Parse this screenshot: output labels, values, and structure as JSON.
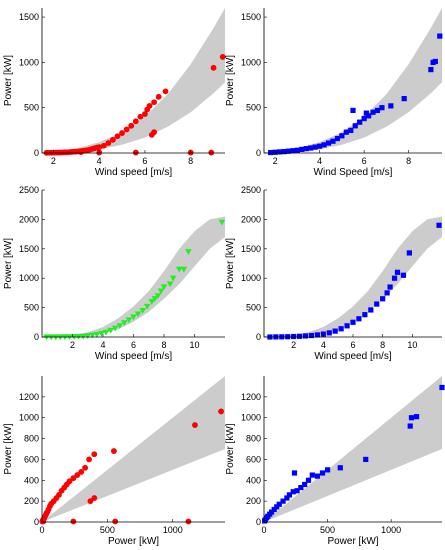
{
  "chart_data": [
    {
      "type": "scatter",
      "xlabel": "Wind speed [m/s]",
      "ylabel": "Power [kW]",
      "xlim": [
        1.5,
        9.5
      ],
      "ylim": [
        0,
        1600
      ],
      "xticks": [
        2,
        4,
        6,
        8
      ],
      "yticks": [
        0,
        500,
        1000,
        1500
      ],
      "marker": "circle",
      "color": "#ff0000",
      "band_color": "#cccccc",
      "band": {
        "x": [
          1.5,
          2,
          3,
          4,
          5,
          6,
          7,
          8,
          9,
          9.5
        ],
        "lower": [
          0,
          3,
          15,
          40,
          90,
          170,
          290,
          450,
          660,
          780
        ],
        "upper": [
          5,
          15,
          50,
          120,
          230,
          400,
          650,
          980,
          1380,
          1600
        ]
      },
      "points": [
        [
          1.7,
          2
        ],
        [
          1.8,
          3
        ],
        [
          1.9,
          3
        ],
        [
          2.0,
          4
        ],
        [
          2.1,
          4
        ],
        [
          2.2,
          5
        ],
        [
          2.3,
          5
        ],
        [
          2.4,
          6
        ],
        [
          2.5,
          8
        ],
        [
          2.6,
          8
        ],
        [
          2.7,
          10
        ],
        [
          2.8,
          12
        ],
        [
          2.9,
          14
        ],
        [
          3.0,
          15
        ],
        [
          3.1,
          18
        ],
        [
          3.2,
          20
        ],
        [
          3.3,
          24
        ],
        [
          3.4,
          28
        ],
        [
          3.5,
          32
        ],
        [
          3.6,
          38
        ],
        [
          3.7,
          45
        ],
        [
          3.8,
          52
        ],
        [
          3.9,
          60
        ],
        [
          4.0,
          65
        ],
        [
          4.2,
          80
        ],
        [
          4.4,
          110
        ],
        [
          4.6,
          145
        ],
        [
          4.8,
          185
        ],
        [
          5.0,
          220
        ],
        [
          5.2,
          260
        ],
        [
          5.4,
          300
        ],
        [
          5.6,
          350
        ],
        [
          5.8,
          400
        ],
        [
          6.0,
          430
        ],
        [
          6.1,
          480
        ],
        [
          6.2,
          520
        ],
        [
          6.4,
          560
        ],
        [
          6.6,
          620
        ],
        [
          6.9,
          680
        ],
        [
          6.3,
          200
        ],
        [
          6.4,
          230
        ],
        [
          3.2,
          10
        ],
        [
          4.0,
          5
        ],
        [
          5.6,
          5
        ],
        [
          8.0,
          5
        ],
        [
          8.9,
          5
        ],
        [
          9.0,
          940
        ],
        [
          9.4,
          1060
        ]
      ]
    },
    {
      "type": "scatter",
      "xlabel": "Wind Speed [m/s]",
      "ylabel": "Power [kW]",
      "xlim": [
        1.5,
        9.5
      ],
      "ylim": [
        0,
        1600
      ],
      "xticks": [
        2,
        4,
        6,
        8
      ],
      "yticks": [
        0,
        500,
        1000,
        1500
      ],
      "marker": "square",
      "color": "#0000ff",
      "band_color": "#cccccc",
      "band": {
        "x": [
          1.5,
          2,
          3,
          4,
          5,
          6,
          7,
          8,
          9,
          9.5
        ],
        "lower": [
          0,
          3,
          15,
          40,
          90,
          170,
          290,
          450,
          660,
          780
        ],
        "upper": [
          5,
          15,
          50,
          120,
          230,
          400,
          650,
          980,
          1380,
          1600
        ]
      },
      "points": [
        [
          1.8,
          5
        ],
        [
          2.0,
          8
        ],
        [
          2.2,
          12
        ],
        [
          2.4,
          15
        ],
        [
          2.6,
          20
        ],
        [
          2.8,
          25
        ],
        [
          3.0,
          30
        ],
        [
          3.2,
          40
        ],
        [
          3.4,
          48
        ],
        [
          3.6,
          55
        ],
        [
          3.8,
          65
        ],
        [
          4.0,
          75
        ],
        [
          4.2,
          90
        ],
        [
          4.4,
          110
        ],
        [
          4.6,
          130
        ],
        [
          4.8,
          160
        ],
        [
          5.0,
          190
        ],
        [
          5.2,
          230
        ],
        [
          5.4,
          250
        ],
        [
          5.5,
          470
        ],
        [
          5.6,
          300
        ],
        [
          5.8,
          340
        ],
        [
          6.0,
          380
        ],
        [
          6.1,
          440
        ],
        [
          6.2,
          410
        ],
        [
          6.4,
          450
        ],
        [
          6.6,
          470
        ],
        [
          6.8,
          500
        ],
        [
          7.2,
          520
        ],
        [
          7.8,
          600
        ],
        [
          9.0,
          920
        ],
        [
          9.1,
          1000
        ],
        [
          9.2,
          1010
        ],
        [
          9.4,
          1290
        ]
      ]
    },
    {
      "type": "scatter",
      "xlabel": "Wind speed [m/s]",
      "ylabel": "Power [kW]",
      "xlim": [
        0,
        12
      ],
      "ylim": [
        0,
        2500
      ],
      "xticks": [
        2,
        4,
        6,
        8,
        10
      ],
      "yticks": [
        0,
        500,
        1000,
        1500,
        2000,
        2500
      ],
      "marker": "triangle-down",
      "color": "#22ee22",
      "band_color": "#cccccc",
      "band": {
        "x": [
          0,
          2,
          3,
          4,
          5,
          6,
          7,
          8,
          9,
          10,
          11,
          12
        ],
        "lower": [
          0,
          5,
          20,
          60,
          130,
          260,
          430,
          650,
          900,
          1200,
          1500,
          1700
        ],
        "upper": [
          10,
          30,
          80,
          170,
          320,
          520,
          780,
          1120,
          1500,
          1800,
          2000,
          2050
        ]
      },
      "points": [
        [
          0.3,
          0
        ],
        [
          0.6,
          0
        ],
        [
          0.9,
          0
        ],
        [
          1.2,
          0
        ],
        [
          1.5,
          2
        ],
        [
          1.8,
          3
        ],
        [
          2.1,
          5
        ],
        [
          2.4,
          8
        ],
        [
          2.7,
          12
        ],
        [
          3.0,
          20
        ],
        [
          3.3,
          30
        ],
        [
          3.6,
          40
        ],
        [
          3.9,
          60
        ],
        [
          4.2,
          80
        ],
        [
          4.5,
          110
        ],
        [
          4.8,
          150
        ],
        [
          5.1,
          190
        ],
        [
          5.4,
          240
        ],
        [
          5.7,
          290
        ],
        [
          6.0,
          340
        ],
        [
          6.3,
          390
        ],
        [
          6.6,
          450
        ],
        [
          6.9,
          520
        ],
        [
          7.2,
          600
        ],
        [
          7.4,
          650
        ],
        [
          7.6,
          700
        ],
        [
          7.8,
          780
        ],
        [
          8.0,
          850
        ],
        [
          8.4,
          900
        ],
        [
          8.6,
          1000
        ],
        [
          9.0,
          1150
        ],
        [
          9.3,
          1150
        ],
        [
          9.6,
          1450
        ],
        [
          11.8,
          1950
        ]
      ]
    },
    {
      "type": "scatter",
      "xlabel": "Wind speed [m/s]",
      "ylabel": "Power [kW]",
      "xlim": [
        0,
        12
      ],
      "ylim": [
        0,
        2500
      ],
      "xticks": [
        2,
        4,
        6,
        8,
        10
      ],
      "yticks": [
        0,
        500,
        1000,
        1500,
        2000,
        2500
      ],
      "marker": "square",
      "color": "#0000ff",
      "band_color": "#cccccc",
      "band": {
        "x": [
          0,
          2,
          3,
          4,
          5,
          6,
          7,
          8,
          9,
          10,
          11,
          12
        ],
        "lower": [
          0,
          5,
          20,
          60,
          130,
          260,
          430,
          650,
          900,
          1200,
          1500,
          1700
        ],
        "upper": [
          10,
          30,
          80,
          170,
          320,
          520,
          780,
          1120,
          1500,
          1800,
          2000,
          2050
        ]
      },
      "points": [
        [
          0.4,
          0
        ],
        [
          0.8,
          2
        ],
        [
          1.2,
          3
        ],
        [
          1.6,
          5
        ],
        [
          2.0,
          8
        ],
        [
          2.4,
          12
        ],
        [
          2.8,
          18
        ],
        [
          3.2,
          25
        ],
        [
          3.6,
          35
        ],
        [
          4.0,
          50
        ],
        [
          4.4,
          70
        ],
        [
          4.8,
          100
        ],
        [
          5.2,
          140
        ],
        [
          5.6,
          190
        ],
        [
          6.0,
          250
        ],
        [
          6.4,
          310
        ],
        [
          6.8,
          380
        ],
        [
          7.2,
          460
        ],
        [
          7.6,
          560
        ],
        [
          8.0,
          650
        ],
        [
          8.3,
          750
        ],
        [
          8.5,
          850
        ],
        [
          8.8,
          1000
        ],
        [
          9.0,
          1100
        ],
        [
          9.4,
          1050
        ],
        [
          9.8,
          1430
        ],
        [
          11.8,
          1900
        ]
      ]
    },
    {
      "type": "scatter",
      "xlabel": "Power [kW]",
      "ylabel": "Power [kW]",
      "xlim": [
        0,
        1400
      ],
      "ylim": [
        0,
        1400
      ],
      "xticks": [
        0,
        500,
        1000
      ],
      "yticks": [
        0,
        200,
        400,
        600,
        800,
        1000,
        1200
      ],
      "marker": "circle",
      "color": "#ff0000",
      "band_color": "#cccccc",
      "band": {
        "x": [
          0,
          1400
        ],
        "lower": [
          0,
          700
        ],
        "upper": [
          0,
          1400
        ]
      },
      "points": [
        [
          2,
          5
        ],
        [
          5,
          10
        ],
        [
          8,
          18
        ],
        [
          12,
          25
        ],
        [
          16,
          35
        ],
        [
          20,
          45
        ],
        [
          25,
          60
        ],
        [
          30,
          70
        ],
        [
          35,
          85
        ],
        [
          40,
          95
        ],
        [
          50,
          120
        ],
        [
          60,
          150
        ],
        [
          70,
          175
        ],
        [
          90,
          200
        ],
        [
          110,
          230
        ],
        [
          130,
          260
        ],
        [
          150,
          300
        ],
        [
          170,
          330
        ],
        [
          190,
          360
        ],
        [
          210,
          390
        ],
        [
          240,
          420
        ],
        [
          270,
          450
        ],
        [
          300,
          480
        ],
        [
          330,
          520
        ],
        [
          360,
          600
        ],
        [
          400,
          650
        ],
        [
          550,
          680
        ],
        [
          370,
          200
        ],
        [
          400,
          230
        ],
        [
          10,
          5
        ],
        [
          240,
          5
        ],
        [
          560,
          5
        ],
        [
          1120,
          5
        ],
        [
          1170,
          930
        ],
        [
          1370,
          1060
        ]
      ]
    },
    {
      "type": "scatter",
      "xlabel": "Power [kW]",
      "ylabel": "Power [kW]",
      "xlim": [
        0,
        1400
      ],
      "ylim": [
        0,
        1400
      ],
      "xticks": [
        0,
        500,
        1000
      ],
      "yticks": [
        0,
        200,
        400,
        600,
        800,
        1000,
        1200
      ],
      "marker": "square",
      "color": "#0000ff",
      "band_color": "#cccccc",
      "band": {
        "x": [
          0,
          1400
        ],
        "lower": [
          0,
          700
        ],
        "upper": [
          0,
          1400
        ]
      },
      "points": [
        [
          5,
          10
        ],
        [
          10,
          20
        ],
        [
          20,
          40
        ],
        [
          30,
          55
        ],
        [
          45,
          75
        ],
        [
          60,
          95
        ],
        [
          80,
          120
        ],
        [
          100,
          145
        ],
        [
          120,
          170
        ],
        [
          150,
          200
        ],
        [
          180,
          230
        ],
        [
          200,
          260
        ],
        [
          230,
          290
        ],
        [
          240,
          470
        ],
        [
          260,
          300
        ],
        [
          290,
          330
        ],
        [
          320,
          360
        ],
        [
          350,
          400
        ],
        [
          380,
          450
        ],
        [
          420,
          440
        ],
        [
          460,
          470
        ],
        [
          500,
          500
        ],
        [
          600,
          520
        ],
        [
          800,
          600
        ],
        [
          1150,
          920
        ],
        [
          1160,
          1000
        ],
        [
          1200,
          1010
        ],
        [
          1400,
          1290
        ]
      ]
    }
  ]
}
